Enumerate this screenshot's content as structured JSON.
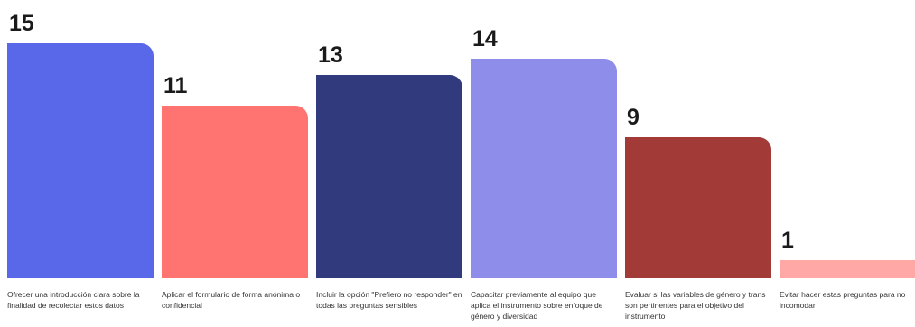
{
  "chart_data": {
    "type": "bar",
    "title": "",
    "xlabel": "",
    "ylabel": "",
    "ylim": [
      0,
      15
    ],
    "grid": false,
    "legend": "none",
    "categories": [
      "Ofrecer una introducción clara sobre la finalidad de recolectar estos datos",
      "Aplicar el formulario de forma anónima o confidencial",
      "Incluir la opción \"Prefiero no responder\" en todas las preguntas sensibles",
      "Capacitar previamente al equipo que aplica el instrumento sobre enfoque de género y diversidad",
      "Evaluar si las variables de género y trans son pertinentes para el objetivo del instrumento",
      "Evitar hacer estas preguntas para no incomodar"
    ],
    "values": [
      15,
      11,
      13,
      14,
      9,
      1
    ],
    "colors": [
      "#5868E8",
      "#FF7470",
      "#313A7C",
      "#8E8EEA",
      "#A23A38",
      "#FFA8A6"
    ]
  }
}
